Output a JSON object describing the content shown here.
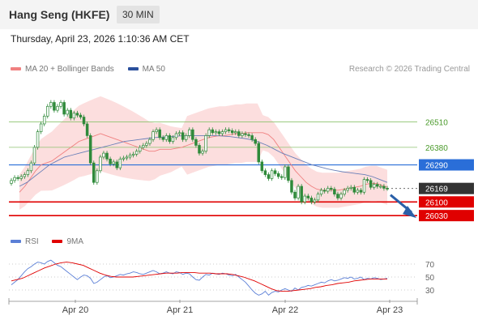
{
  "header": {
    "title": "Hang Seng (HKFE)",
    "interval": "30 MIN",
    "datetime": "Thursday, April 23, 2026 1:10:36 AM CET"
  },
  "legend": {
    "items": [
      {
        "label": "MA 20 + Bollinger Bands",
        "color": "#f08080"
      },
      {
        "label": "MA 50",
        "color": "#2a4f9c"
      }
    ],
    "copyright": "Research © 2026 Trading Central"
  },
  "rsi_legend": {
    "items": [
      {
        "label": "RSI",
        "color": "#5b7fd6"
      },
      {
        "label": "9MA",
        "color": "#e00000"
      }
    ]
  },
  "chart_data": [
    {
      "type": "line",
      "title": "",
      "x_ticks": [
        "Apr 20",
        "Apr 21",
        "Apr 22",
        "Apr 23"
      ],
      "ylim": [
        25960,
        26720
      ],
      "levels": [
        {
          "value": 26510,
          "label": "26510",
          "kind": "resistance",
          "color": "#8dc26f"
        },
        {
          "value": 26380,
          "label": "26380",
          "kind": "resistance",
          "color": "#8dc26f"
        },
        {
          "value": 26290,
          "label": "26290",
          "kind": "pivot",
          "color": "#2a6ed8"
        },
        {
          "value": 26169,
          "label": "26169",
          "kind": "last",
          "color": "#333333"
        },
        {
          "value": 26100,
          "label": "26100",
          "kind": "support",
          "color": "#e00000"
        },
        {
          "value": 26030,
          "label": "26030",
          "kind": "support",
          "color": "#e00000"
        }
      ],
      "series": [
        {
          "name": "Price",
          "values": [
            26210,
            26225,
            26220,
            26230,
            26240,
            26260,
            26300,
            26380,
            26460,
            26500,
            26540,
            26590,
            26610,
            26570,
            26590,
            26610,
            26550,
            26570,
            26530,
            26555,
            26545,
            26535,
            26500,
            26440,
            26300,
            26200,
            26260,
            26330,
            26350,
            26320,
            26295,
            26305,
            26275,
            26320,
            26325,
            26330,
            26340,
            26345,
            26360,
            26380,
            26390,
            26400,
            26420,
            26460,
            26470,
            26430,
            26420,
            26440,
            26410,
            26430,
            26450,
            26455,
            26420,
            26440,
            26470,
            26420,
            26390,
            26350,
            26360,
            26440,
            26470,
            26455,
            26460,
            26450,
            26460,
            26470,
            26465,
            26455,
            26460,
            26440,
            26450,
            26445,
            26440,
            26420,
            26400,
            26305,
            26260,
            26240,
            26220,
            26260,
            26245,
            26230,
            26225,
            26280,
            26210,
            26150,
            26120,
            26180,
            26100,
            26130,
            26120,
            26100,
            26110,
            26140,
            26160,
            26155,
            26170,
            26165,
            26140,
            26120,
            26140,
            26160,
            26170,
            26175,
            26150,
            26160,
            26150,
            26215,
            26210,
            26175,
            26190,
            26180,
            26180,
            26170,
            26169
          ]
        },
        {
          "name": "MA 20",
          "values": [
            26150,
            26180,
            26220,
            26260,
            26290,
            26300,
            26310,
            26330,
            26350,
            26370,
            26390,
            26410,
            26420,
            26430,
            26440,
            26450,
            26440,
            26430,
            26420,
            26410,
            26400,
            26390,
            26380,
            26370,
            26360,
            26360,
            26370,
            26370,
            26370,
            26375,
            26380,
            26390,
            26400,
            26410,
            26420,
            26430,
            26435,
            26440,
            26440,
            26445,
            26450,
            26450,
            26455,
            26455,
            26455,
            26455,
            26445,
            26420,
            26380,
            26340,
            26300,
            26260,
            26230,
            26200,
            26180,
            26165,
            26160,
            26160,
            26160,
            26160,
            26165,
            26170,
            26175,
            26180,
            26190,
            26195,
            26195,
            26185,
            26175
          ]
        },
        {
          "name": "MA 50",
          "values": [
            26180,
            26200,
            26230,
            26260,
            26290,
            26310,
            26330,
            26340,
            26350,
            26360,
            26370,
            26380,
            26390,
            26400,
            26410,
            26415,
            26420,
            26425,
            26430,
            26432,
            26435,
            26437,
            26440,
            26440,
            26440,
            26440,
            26440,
            26438,
            26435,
            26430,
            26425,
            26418,
            26405,
            26390,
            26370,
            26350,
            26335,
            26320,
            26305,
            26290,
            26280,
            26270,
            26262,
            26255,
            26250,
            26245,
            26240,
            26230,
            26215,
            26200
          ]
        }
      ]
    },
    {
      "type": "line",
      "title": "",
      "y_ticks": [
        70,
        50,
        30
      ],
      "ylim": [
        15,
        90
      ],
      "series": [
        {
          "name": "RSI",
          "values": [
            38,
            42,
            46,
            52,
            58,
            63,
            66,
            70,
            73,
            72,
            70,
            74,
            76,
            72,
            68,
            66,
            62,
            58,
            54,
            50,
            46,
            50,
            53,
            52,
            48,
            40,
            42,
            46,
            50,
            52,
            49,
            50,
            52,
            54,
            53,
            55,
            56,
            58,
            57,
            55,
            54,
            56,
            58,
            60,
            58,
            55,
            56,
            58,
            56,
            55,
            58,
            57,
            54,
            56,
            55,
            50,
            46,
            45,
            50,
            54,
            53,
            56,
            55,
            54,
            56,
            55,
            53,
            52,
            54,
            50,
            46,
            42,
            36,
            30,
            25,
            22,
            24,
            28,
            22,
            26,
            28,
            27,
            30,
            32,
            30,
            28,
            33,
            30,
            34,
            35,
            37,
            36,
            38,
            40,
            42,
            41,
            44,
            46,
            44,
            45,
            47,
            49,
            48,
            50,
            47,
            48,
            50,
            46,
            48,
            47,
            49,
            48,
            46,
            47,
            48
          ]
        },
        {
          "name": "9MA",
          "values": [
            44,
            46,
            48,
            52,
            56,
            60,
            64,
            67,
            70,
            72,
            73,
            72,
            70,
            68,
            64,
            60,
            56,
            53,
            51,
            50,
            50,
            50,
            50,
            51,
            52,
            53,
            54,
            55,
            56,
            56,
            56,
            57,
            57,
            57,
            56,
            56,
            56,
            55,
            55,
            55,
            54,
            52,
            50,
            47,
            44,
            40,
            36,
            32,
            29,
            28,
            28,
            29,
            30,
            31,
            32,
            34,
            35,
            37,
            38,
            40,
            41,
            42,
            44,
            45,
            46,
            47,
            47,
            47,
            47
          ]
        }
      ]
    }
  ]
}
